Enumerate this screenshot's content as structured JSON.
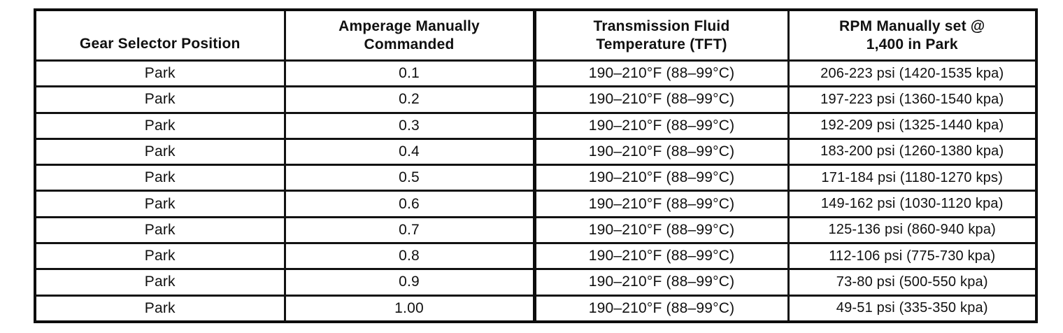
{
  "colors": {
    "ink": "#101010",
    "paper": "#ffffff"
  },
  "table": {
    "columns": [
      {
        "key": "gear-selector-position",
        "label": "Gear Selector Position"
      },
      {
        "key": "amperage-commanded",
        "label": "Amperage Manually\nCommanded"
      },
      {
        "key": "tft",
        "label": "Transmission Fluid\nTemperature (TFT)"
      },
      {
        "key": "rpm-line-pressure",
        "label": "RPM Manually set @\n1,400 in Park"
      }
    ],
    "rows": [
      [
        "Park",
        "0.1",
        "190–210°F (88–99°C)",
        "206-223 psi (1420-1535 kpa)"
      ],
      [
        "Park",
        "0.2",
        "190–210°F (88–99°C)",
        "197-223 psi (1360-1540 kpa)"
      ],
      [
        "Park",
        "0.3",
        "190–210°F (88–99°C)",
        "192-209 psi (1325-1440 kpa)"
      ],
      [
        "Park",
        "0.4",
        "190–210°F (88–99°C)",
        "183-200 psi (1260-1380 kpa)"
      ],
      [
        "Park",
        "0.5",
        "190–210°F (88–99°C)",
        "171-184 psi (1180-1270 kps)"
      ],
      [
        "Park",
        "0.6",
        "190–210°F (88–99°C)",
        "149-162 psi (1030-1120 kpa)"
      ],
      [
        "Park",
        "0.7",
        "190–210°F (88–99°C)",
        "125-136 psi (860-940 kpa)"
      ],
      [
        "Park",
        "0.8",
        "190–210°F (88–99°C)",
        "112-106 psi (775-730 kpa)"
      ],
      [
        "Park",
        "0.9",
        "190–210°F (88–99°C)",
        "73-80 psi (500-550 kpa)"
      ],
      [
        "Park",
        "1.00",
        "190–210°F (88–99°C)",
        "49-51 psi (335-350 kpa)"
      ]
    ]
  }
}
